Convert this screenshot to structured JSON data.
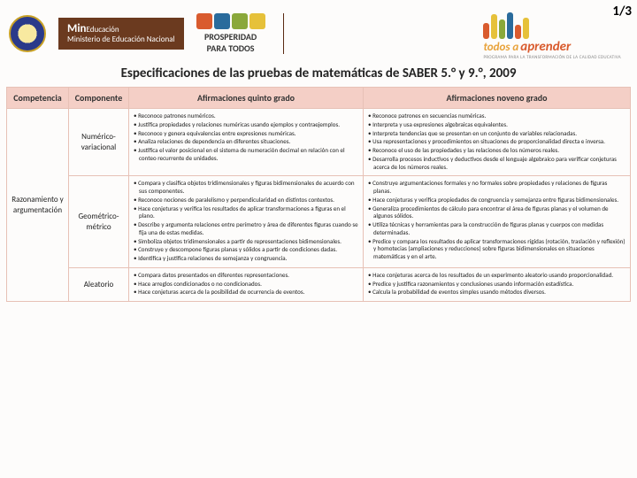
{
  "page_indicator": "1/3",
  "header": {
    "ministry_bold": "Min",
    "ministry_rest": "Educación",
    "ministry_sub": "Ministerio de Educación Nacional",
    "prosperidad_l1": "PROSPERIDAD",
    "prosperidad_l2": "PARA TODOS",
    "todos_a": "todos a",
    "todos_b": "aprender",
    "todos_sub": "PROGRAMA PARA LA TRANSFORMACIÓN DE LA CALIDAD EDUCATIVA",
    "prosp_colors": [
      "#d95b2e",
      "#2a6b9c",
      "#8aa83a",
      "#e6c13a"
    ],
    "todos_bars": [
      {
        "h": 18,
        "c": "#d95b2e"
      },
      {
        "h": 28,
        "c": "#e6c13a"
      },
      {
        "h": 22,
        "c": "#8aa83a"
      },
      {
        "h": 30,
        "c": "#2a6b9c"
      },
      {
        "h": 16,
        "c": "#d95b2e"
      },
      {
        "h": 24,
        "c": "#e6c13a"
      }
    ]
  },
  "title": "Especificaciones de las pruebas de matemáticas de SABER 5.° y 9.°, 2009",
  "table": {
    "headers": [
      "Competencia",
      "Componente",
      "Afirmaciones quinto grado",
      "Afirmaciones noveno grado"
    ],
    "competencia": "Razonamiento y argumentación",
    "rows": [
      {
        "componente": "Numérico-variacional",
        "quinto": [
          "Reconoce patrones numéricos.",
          "Justifica propiedades y relaciones numéricas usando ejemplos y contraejemplos.",
          "Reconoce y genera equivalencias entre expresiones numéricas.",
          "Analiza relaciones de dependencia en diferentes situaciones.",
          "Justifica el valor posicional en el sistema de numeración decimal en relación con el conteo recurrente de unidades."
        ],
        "noveno": [
          "Reconoce patrones en secuencias numéricas.",
          "Interpreta y usa expresiones algebraicas equivalentes.",
          "Interpreta tendencias que se presentan en un conjunto de variables relacionadas.",
          "Usa representaciones y procedimientos en situaciones de proporcionalidad directa e inversa.",
          "Reconoce el uso de las propiedades y las relaciones de los números reales.",
          "Desarrolla procesos inductivos y deductivos desde el lenguaje algebraico para verificar conjeturas acerca de los números reales."
        ]
      },
      {
        "componente": "Geométrico-métrico",
        "quinto": [
          "Compara y clasifica objetos tridimensionales y figuras bidimensionales de acuerdo con sus componentes.",
          "Reconoce nociones de paralelismo y perpendicularidad en distintos contextos.",
          "Hace conjeturas y verifica los resultados de aplicar transformaciones a figuras en el plano.",
          "Describe y argumenta relaciones entre perímetro y área de diferentes figuras cuando se fija una de estas medidas.",
          "Simboliza objetos tridimensionales a partir de representaciones bidimensionales.",
          "Construye y descompone figuras planas y sólidos a partir de condiciones dadas.",
          "Identifica y justifica relaciones de semejanza y congruencia."
        ],
        "noveno": [
          "Construye argumentaciones formales y no formales sobre propiedades y relaciones de figuras planas.",
          "Hace conjeturas y verifica propiedades de congruencia y semejanza entre figuras bidimensionales.",
          "Generaliza procedimientos de cálculo para encontrar el área de figuras planas y el volumen de algunos sólidos.",
          "Utiliza técnicas y herramientas para la construcción de figuras planas y cuerpos con medidas determinadas.",
          "Predice y compara los resultados de aplicar transformaciones rígidas (rotación, traslación y reflexión) y homotecias (ampliaciones y reducciones) sobre figuras bidimensionales en situaciones matemáticas y en el arte."
        ]
      },
      {
        "componente": "Aleatorio",
        "quinto": [
          "Compara datos presentados en diferentes representaciones.",
          "Hace arreglos condicionados o no condicionados.",
          "Hace conjeturas acerca de la posibilidad de ocurrencia de eventos."
        ],
        "noveno": [
          "Hace conjeturas acerca de los resultados de un experimento aleatorio usando proporcionalidad.",
          "Predice y justifica razonamientos y conclusiones usando información estadística.",
          "Calcula la probabilidad de eventos simples usando métodos diversos."
        ]
      }
    ]
  },
  "styles": {
    "header_bg": "#f4cfc6",
    "border_color": "#e7c1b6",
    "ministry_bg": "#6b3a1f"
  }
}
